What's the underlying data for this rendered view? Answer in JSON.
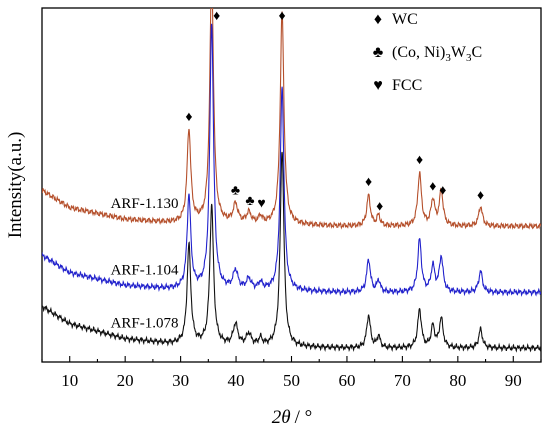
{
  "chart_data": {
    "type": "line",
    "xlabel_symbol": "2θ",
    "xlabel_unit": "/ °",
    "ylabel": "Intensity(a.u.)",
    "xlim": [
      5,
      95
    ],
    "xticks": [
      10,
      20,
      30,
      40,
      50,
      60,
      70,
      80,
      90
    ],
    "y_ticks_shown": false,
    "grid": false,
    "legend_position": "top-right",
    "legend": [
      {
        "marker": "diamond",
        "symbol_glyph": "♦",
        "label": "WC"
      },
      {
        "marker": "club",
        "symbol_glyph": "♣",
        "label_prefix": "(Co, Ni)",
        "label_sub1": "3",
        "label_mid": "W",
        "label_sub2": "3",
        "label_suffix": "C"
      },
      {
        "marker": "heart",
        "symbol_glyph": "♥",
        "label": "FCC"
      }
    ],
    "peak_markers_note_glyphs": {
      "diamond": "♦",
      "club": "♣",
      "heart": "♥"
    },
    "series": [
      {
        "name": "ARF-1.130",
        "color": "#b5502c",
        "baseline": [
          [
            5,
            1.38
          ],
          [
            10,
            1.23
          ],
          [
            20,
            1.13
          ],
          [
            28,
            1.1
          ],
          [
            40,
            1.09
          ],
          [
            50,
            1.08
          ],
          [
            60,
            1.07
          ],
          [
            70,
            1.07
          ],
          [
            80,
            1.07
          ],
          [
            95,
            1.07
          ]
        ],
        "peaks": [
          {
            "x": 31.5,
            "h": 0.8,
            "w": 0.4
          },
          {
            "x": 35.6,
            "h": 2.15,
            "w": 0.4
          },
          {
            "x": 39.9,
            "h": 0.16,
            "w": 0.5
          },
          {
            "x": 42.3,
            "h": 0.09,
            "w": 0.5
          },
          {
            "x": 44.4,
            "h": 0.06,
            "w": 0.4
          },
          {
            "x": 48.3,
            "h": 1.83,
            "w": 0.4
          },
          {
            "x": 63.9,
            "h": 0.26,
            "w": 0.4
          },
          {
            "x": 65.7,
            "h": 0.09,
            "w": 0.35
          },
          {
            "x": 73.1,
            "h": 0.45,
            "w": 0.4
          },
          {
            "x": 75.5,
            "h": 0.22,
            "w": 0.4
          },
          {
            "x": 77.0,
            "h": 0.3,
            "w": 0.4
          },
          {
            "x": 84.1,
            "h": 0.17,
            "w": 0.4
          }
        ]
      },
      {
        "name": "ARF-1.104",
        "color": "#2222cc",
        "baseline": [
          [
            5,
            0.82
          ],
          [
            10,
            0.67
          ],
          [
            20,
            0.56
          ],
          [
            28,
            0.53
          ],
          [
            40,
            0.52
          ],
          [
            50,
            0.51
          ],
          [
            60,
            0.5
          ],
          [
            70,
            0.5
          ],
          [
            80,
            0.5
          ],
          [
            95,
            0.5
          ]
        ],
        "peaks": [
          {
            "x": 31.5,
            "h": 0.8,
            "w": 0.4
          },
          {
            "x": 35.6,
            "h": 2.3,
            "w": 0.4
          },
          {
            "x": 39.9,
            "h": 0.16,
            "w": 0.5
          },
          {
            "x": 42.3,
            "h": 0.09,
            "w": 0.5
          },
          {
            "x": 44.4,
            "h": 0.06,
            "w": 0.4
          },
          {
            "x": 48.3,
            "h": 1.75,
            "w": 0.4
          },
          {
            "x": 63.9,
            "h": 0.28,
            "w": 0.4
          },
          {
            "x": 65.7,
            "h": 0.1,
            "w": 0.35
          },
          {
            "x": 73.1,
            "h": 0.45,
            "w": 0.4
          },
          {
            "x": 75.5,
            "h": 0.22,
            "w": 0.4
          },
          {
            "x": 77.0,
            "h": 0.3,
            "w": 0.4
          },
          {
            "x": 84.1,
            "h": 0.18,
            "w": 0.4
          }
        ]
      },
      {
        "name": "ARF-1.078",
        "color": "#111111",
        "baseline": [
          [
            5,
            0.38
          ],
          [
            10,
            0.23
          ],
          [
            20,
            0.1
          ],
          [
            28,
            0.06
          ],
          [
            40,
            0.04
          ],
          [
            50,
            0.03
          ],
          [
            60,
            0.02
          ],
          [
            70,
            0.02
          ],
          [
            80,
            0.02
          ],
          [
            95,
            0.02
          ]
        ],
        "peaks": [
          {
            "x": 31.5,
            "h": 0.85,
            "w": 0.4
          },
          {
            "x": 35.6,
            "h": 1.2,
            "w": 0.4
          },
          {
            "x": 39.9,
            "h": 0.18,
            "w": 0.5
          },
          {
            "x": 42.3,
            "h": 0.1,
            "w": 0.5
          },
          {
            "x": 44.4,
            "h": 0.06,
            "w": 0.4
          },
          {
            "x": 48.3,
            "h": 1.7,
            "w": 0.4
          },
          {
            "x": 63.9,
            "h": 0.28,
            "w": 0.4
          },
          {
            "x": 65.7,
            "h": 0.1,
            "w": 0.35
          },
          {
            "x": 73.1,
            "h": 0.33,
            "w": 0.4
          },
          {
            "x": 75.5,
            "h": 0.18,
            "w": 0.4
          },
          {
            "x": 77.0,
            "h": 0.25,
            "w": 0.4
          },
          {
            "x": 84.1,
            "h": 0.16,
            "w": 0.4
          }
        ]
      }
    ],
    "peak_annotations": [
      {
        "x": 31.5,
        "marker": "diamond",
        "series": "ARF-1.130"
      },
      {
        "x": 36.5,
        "marker": "diamond",
        "series": "ARF-1.130",
        "at_top": true
      },
      {
        "x": 48.3,
        "marker": "diamond",
        "series": "ARF-1.130",
        "at_top": true
      },
      {
        "x": 39.9,
        "marker": "club",
        "series": "ARF-1.130"
      },
      {
        "x": 42.5,
        "marker": "club",
        "series": "ARF-1.130"
      },
      {
        "x": 44.6,
        "marker": "heart",
        "series": "ARF-1.130"
      },
      {
        "x": 63.9,
        "marker": "diamond",
        "series": "ARF-1.130"
      },
      {
        "x": 65.9,
        "marker": "diamond",
        "series": "ARF-1.130"
      },
      {
        "x": 73.1,
        "marker": "diamond",
        "series": "ARF-1.130"
      },
      {
        "x": 75.5,
        "marker": "diamond",
        "series": "ARF-1.130"
      },
      {
        "x": 77.3,
        "marker": "diamond",
        "series": "ARF-1.130"
      },
      {
        "x": 84.1,
        "marker": "diamond",
        "series": "ARF-1.130"
      }
    ]
  }
}
